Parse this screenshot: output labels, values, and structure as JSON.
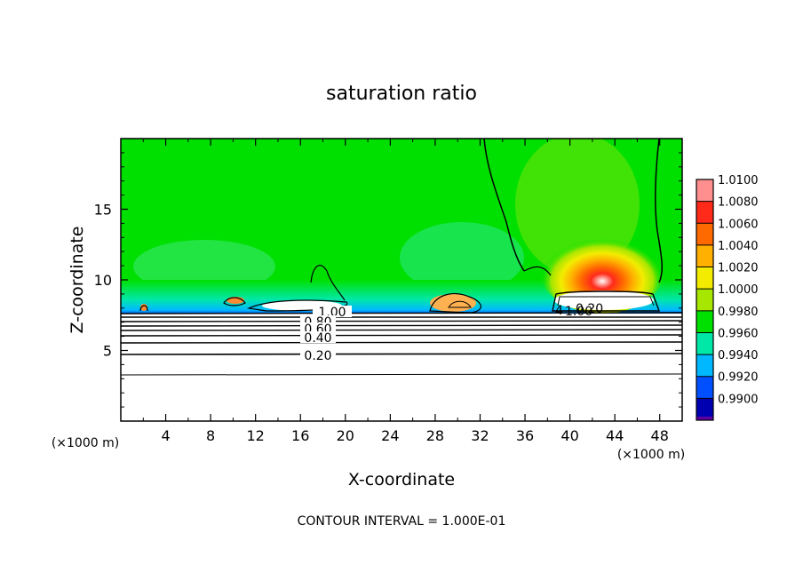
{
  "chart_data": {
    "type": "contour",
    "title": "saturation ratio",
    "xlabel": "X-coordinate",
    "ylabel": "Z-coordinate",
    "x_unit": "(×1000 m)",
    "y_unit": "(×1000 m)",
    "xlim": [
      0,
      50
    ],
    "ylim": [
      0,
      20
    ],
    "xticks": [
      4,
      8,
      12,
      16,
      20,
      24,
      28,
      32,
      36,
      40,
      44,
      48
    ],
    "yticks": [
      5,
      10,
      15
    ],
    "colorbar": {
      "min": 0.99,
      "max": 1.01,
      "levels": [
        "1.0100",
        "1.0080",
        "1.0060",
        "1.0040",
        "1.0020",
        "1.0000",
        "0.9980",
        "0.9960",
        "0.9940",
        "0.9920",
        "0.9900"
      ],
      "colors": [
        "#ff8f8f",
        "#ff2a1a",
        "#ff6a00",
        "#ffb000",
        "#f3ec00",
        "#a6e600",
        "#00e000",
        "#00e8a8",
        "#00b8ff",
        "#0050ff",
        "#0000b0",
        "#6000a0"
      ]
    },
    "contour_levels": [
      0.2,
      0.4,
      0.6,
      0.8,
      1.0
    ],
    "contour_labels": [
      "0.20",
      "0.40",
      "0.60",
      "0.80",
      "1.00",
      "1.00",
      "0.20"
    ],
    "contour_interval": "1.000E-01",
    "features": {
      "supersaturation_max": {
        "x": 43,
        "z": 10.5,
        "value": 1.0088
      },
      "boundary_layer_top_z": 7.8
    }
  },
  "footer": {
    "contour_interval_text": "CONTOUR INTERVAL = 1.000E-01"
  }
}
